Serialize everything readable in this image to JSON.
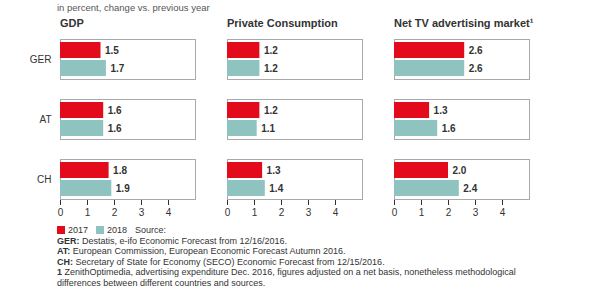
{
  "header": {
    "subtitle": "in percent, change vs. previous year"
  },
  "chart_data": [
    {
      "type": "bar",
      "title": "GDP",
      "orientation": "horizontal",
      "categories": [
        "GER",
        "AT",
        "CH"
      ],
      "series": [
        {
          "name": "2017",
          "color": "#e30a1b",
          "values": [
            1.5,
            1.6,
            1.8
          ],
          "value_labels": [
            "1.5",
            "1.6",
            "1.8"
          ]
        },
        {
          "name": "2018",
          "color": "#8fc3c0",
          "values": [
            1.7,
            1.6,
            1.9
          ],
          "value_labels": [
            "1.7",
            "1.6",
            "1.9"
          ]
        }
      ],
      "xlim": [
        0,
        5
      ],
      "xticks": [
        0,
        1,
        2,
        3,
        4
      ],
      "grid": false,
      "data_labels": true
    },
    {
      "type": "bar",
      "title": "Private Consumption",
      "orientation": "horizontal",
      "categories": [
        "GER",
        "AT",
        "CH"
      ],
      "series": [
        {
          "name": "2017",
          "color": "#e30a1b",
          "values": [
            1.2,
            1.2,
            1.3
          ],
          "value_labels": [
            "1.2",
            "1.2",
            "1.3"
          ]
        },
        {
          "name": "2018",
          "color": "#8fc3c0",
          "values": [
            1.2,
            1.1,
            1.4
          ],
          "value_labels": [
            "1.2",
            "1.1",
            "1.4"
          ]
        }
      ],
      "xlim": [
        0,
        5
      ],
      "xticks": [
        0,
        1,
        2,
        3,
        4
      ],
      "grid": false,
      "data_labels": true,
      "tick_labels": "x"
    },
    {
      "type": "bar",
      "title": "Net TV advertising market¹",
      "orientation": "horizontal",
      "categories": [
        "GER",
        "AT",
        "CH"
      ],
      "series": [
        {
          "name": "2017",
          "color": "#e30a1b",
          "values": [
            2.6,
            1.3,
            2.0
          ],
          "value_labels": [
            "2.6",
            "1.3",
            "2.0"
          ]
        },
        {
          "name": "2018",
          "color": "#8fc3c0",
          "values": [
            2.6,
            1.6,
            2.4
          ],
          "value_labels": [
            "2.6",
            "1.6",
            "2.4"
          ]
        }
      ],
      "xlim": [
        0,
        5
      ],
      "xticks": [
        0,
        1,
        2,
        3,
        4
      ],
      "grid": false,
      "data_labels": true,
      "tick_labels": "x"
    }
  ],
  "footer": {
    "source_label": "Source:",
    "notes": [
      {
        "label": "GER:",
        "text": "Destatis, e-ifo Economic Forecast from 12/16/2016."
      },
      {
        "label": "AT:",
        "text": "European Commission, European Economic Forecast Autumn 2016."
      },
      {
        "label": "CH:",
        "text": "Secretary of State for Economy (SECO) Economic Forecast from 12/15/2016."
      },
      {
        "label": "1",
        "text": "ZenithOptimedia, advertising expenditure Dec. 2016, figures adjusted on a net basis, nonetheless methodological differences between different countries and sources."
      }
    ]
  }
}
